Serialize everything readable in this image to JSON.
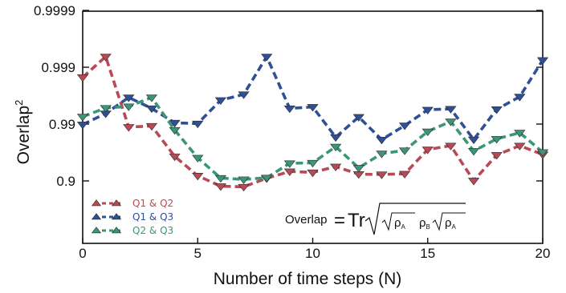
{
  "chart_data": {
    "type": "line",
    "title": "",
    "xlabel": "Number of time steps (N)",
    "ylabel": "Overlap",
    "ylabel_superscript": "2",
    "xlim": [
      0,
      20
    ],
    "x_ticks": [
      0,
      5,
      10,
      15,
      20
    ],
    "y_scale": "log of (1 - overlap squared)",
    "y_ticks": [
      {
        "value": 0.9,
        "label": "0.9"
      },
      {
        "value": 0.99,
        "label": "0.99"
      },
      {
        "value": 0.999,
        "label": "0.999"
      },
      {
        "value": 0.9999,
        "label": "0.9999"
      }
    ],
    "grid": false,
    "legend_position": "bottom-left",
    "x": [
      0,
      1,
      2,
      3,
      4,
      5,
      6,
      7,
      8,
      9,
      10,
      11,
      12,
      13,
      14,
      15,
      16,
      17,
      18,
      19,
      20
    ],
    "series": [
      {
        "name": "Q1 & Q2",
        "color": "#b84a55",
        "marker": "triangle-down",
        "values": [
          0.9985,
          0.99935,
          0.9887,
          0.9892,
          0.963,
          0.919,
          0.876,
          0.873,
          0.91,
          0.932,
          0.929,
          0.944,
          0.924,
          0.923,
          0.925,
          0.972,
          0.976,
          0.901,
          0.965,
          0.976,
          0.9657
        ]
      },
      {
        "name": "Q1 & Q3",
        "color": "#2f4f96",
        "marker": "triangle-down",
        "values": [
          0.9898,
          0.9935,
          0.9966,
          0.9947,
          0.9905,
          0.9902,
          0.9962,
          0.997,
          0.99935,
          0.9947,
          0.995,
          0.983,
          0.9925,
          0.9812,
          0.9894,
          0.9944,
          0.9946,
          0.9813,
          0.9945,
          0.9967,
          0.99925
        ]
      },
      {
        "name": "Q2 & Q3",
        "color": "#3b9577",
        "marker": "triangle-down",
        "values": [
          0.9926,
          0.9948,
          0.9951,
          0.9966,
          0.9873,
          0.9608,
          0.911,
          0.906,
          0.912,
          0.951,
          0.952,
          0.975,
          0.941,
          0.967,
          0.971,
          0.9865,
          0.991,
          0.9702,
          0.9818,
          0.9858,
          0.9688
        ]
      }
    ],
    "annotation": {
      "prefix": "Overlap",
      "equals": "=",
      "operator": "Tr",
      "rho": "ρ",
      "subscript_a": "A",
      "subscript_b": "B"
    }
  }
}
